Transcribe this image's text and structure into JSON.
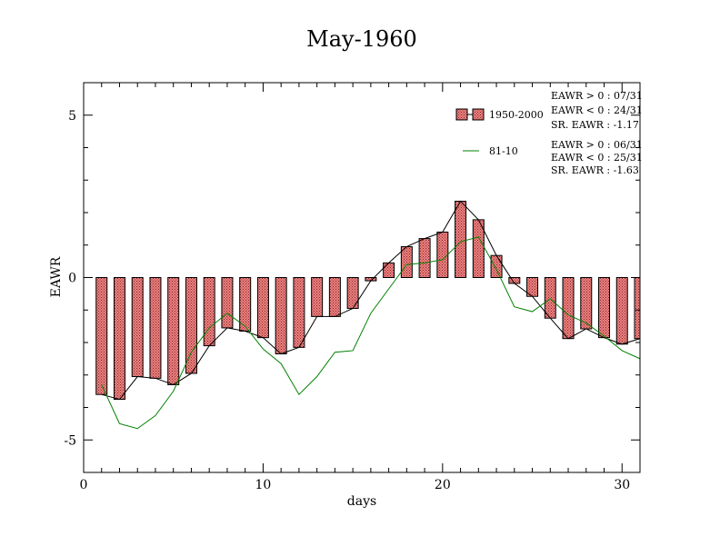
{
  "chart_data": {
    "type": "bar",
    "title": "May-1960",
    "xlabel": "days",
    "ylabel": "EAWR",
    "xlim": [
      0,
      31
    ],
    "ylim": [
      -6,
      6
    ],
    "xticks": [
      0,
      10,
      20,
      30
    ],
    "yticks": [
      -5,
      0,
      5
    ],
    "grid": false,
    "legend_position": "top-right",
    "x": [
      1,
      2,
      3,
      4,
      5,
      6,
      7,
      8,
      9,
      10,
      11,
      12,
      13,
      14,
      15,
      16,
      17,
      18,
      19,
      20,
      21,
      22,
      23,
      24,
      25,
      26,
      27,
      28,
      29,
      30,
      31
    ],
    "series": [
      {
        "name": "1950-2000",
        "kind": "bar",
        "values": [
          -3.6,
          -3.75,
          -3.05,
          -3.1,
          -3.3,
          -2.95,
          -2.1,
          -1.55,
          -1.65,
          -1.85,
          -2.35,
          -2.15,
          -1.2,
          -1.2,
          -0.95,
          -0.1,
          0.45,
          0.95,
          1.2,
          1.4,
          2.35,
          1.78,
          0.68,
          -0.18,
          -0.58,
          -1.25,
          -1.88,
          -1.58,
          -1.85,
          -2.05,
          -1.88
        ]
      },
      {
        "name": "81-10",
        "kind": "line",
        "values": [
          -3.3,
          -4.5,
          -4.65,
          -4.25,
          -3.5,
          -2.3,
          -1.55,
          -1.1,
          -1.5,
          -2.2,
          -2.65,
          -3.6,
          -3.05,
          -2.3,
          -2.25,
          -1.1,
          -0.35,
          0.4,
          0.45,
          0.55,
          1.1,
          1.25,
          0.25,
          -0.9,
          -1.05,
          -0.65,
          -1.15,
          -1.4,
          -1.8,
          -2.25,
          -2.5
        ]
      }
    ],
    "stats": [
      [
        "EAWR > 0 : 07/31",
        "EAWR < 0 : 24/31",
        "SR. EAWR : -1.17"
      ],
      [
        "EAWR > 0 : 06/31",
        "EAWR < 0 : 25/31",
        "SR. EAWR : -1.63"
      ]
    ],
    "colors": {
      "bar_fill": "#f08080",
      "bar_outline": "#000000",
      "line_81_10": "#008000",
      "line_1950_2000": "#000000"
    }
  }
}
